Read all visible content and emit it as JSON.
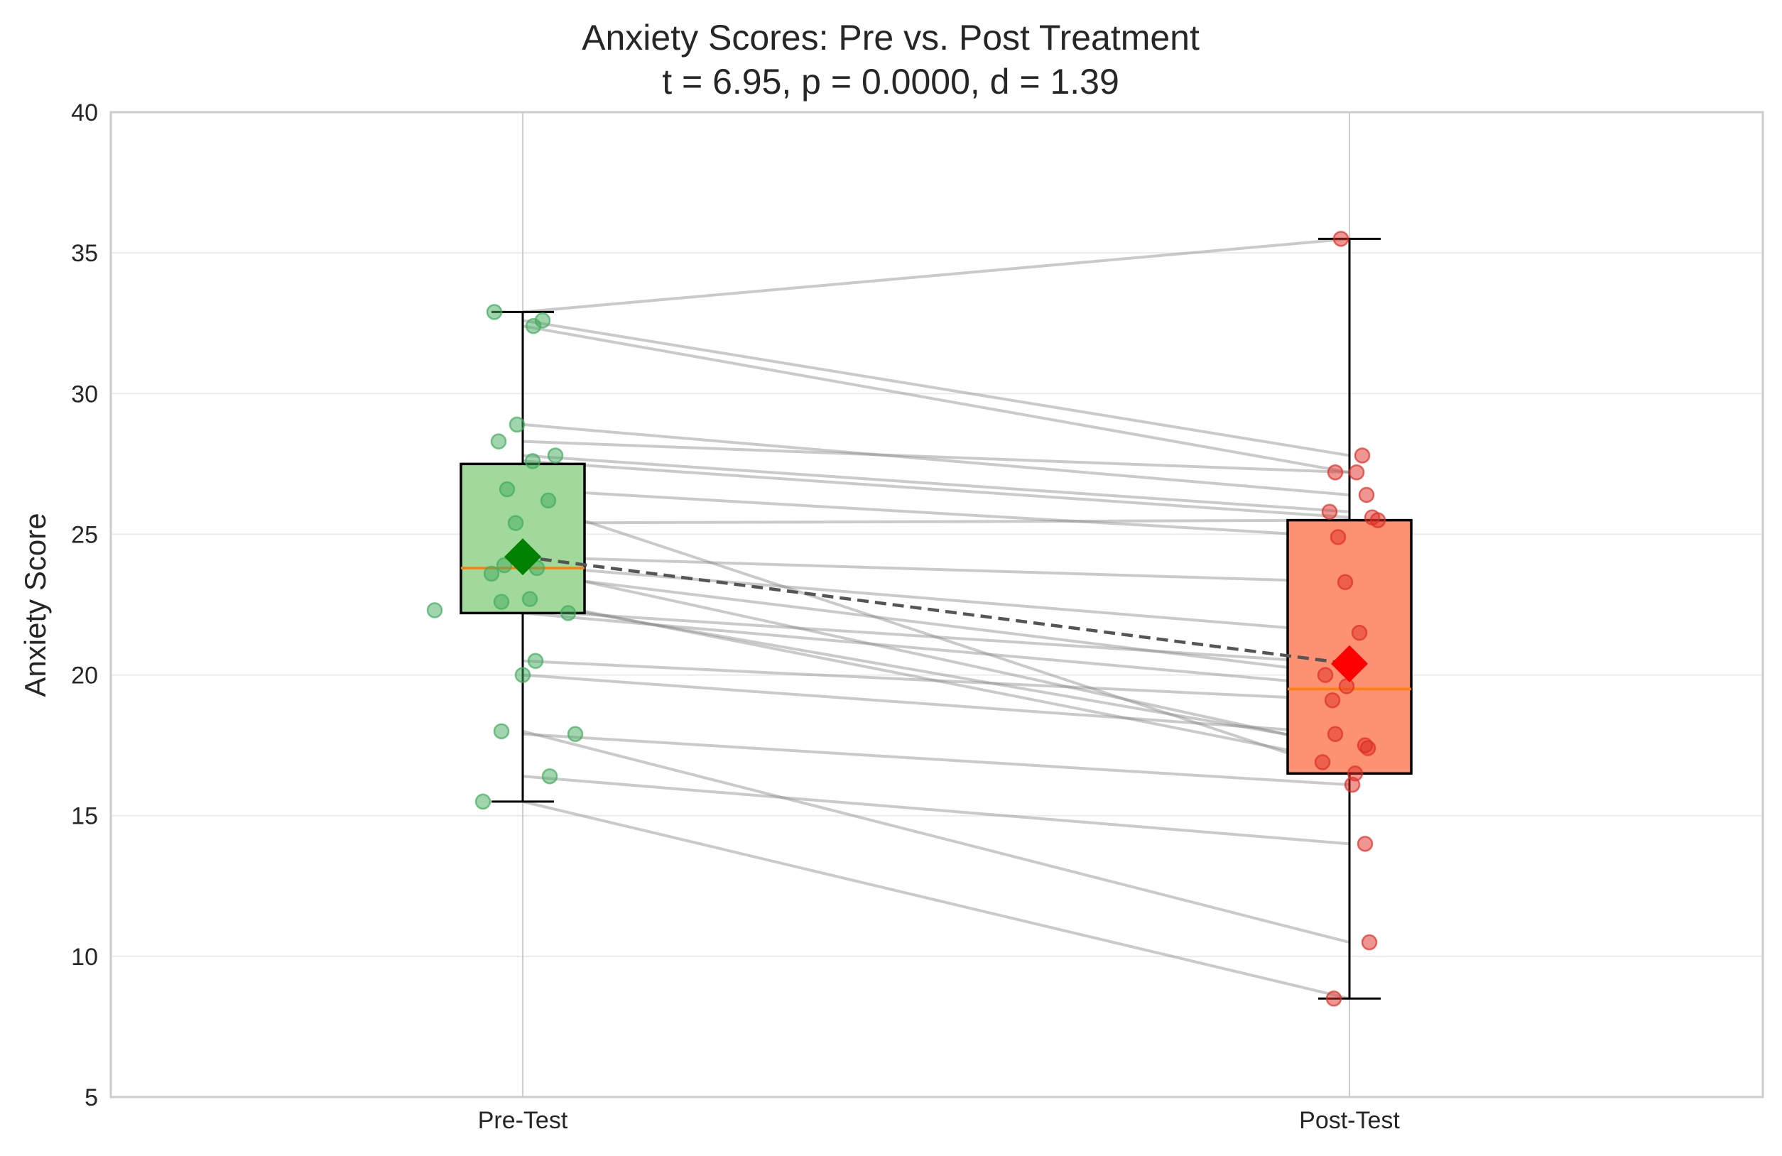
{
  "chart_data": {
    "type": "box",
    "title": "Anxiety Scores: Pre vs. Post Treatment",
    "subtitle": "t = 6.95, p = 0.0000, d = 1.39",
    "xlabel": "",
    "ylabel": "Anxiety Score",
    "ylim": [
      5,
      40
    ],
    "yticks": [
      5,
      10,
      15,
      20,
      25,
      30,
      35,
      40
    ],
    "categories": [
      "Pre-Test",
      "Post-Test"
    ],
    "grid": true,
    "colors": {
      "pre_box": "#a1d99b",
      "post_box": "#fc9272",
      "pre_points": "#41ab5d",
      "post_points": "#de2d26",
      "pre_mean": "#008000",
      "post_mean": "#ff0000",
      "median": "#ff7f0e",
      "pair_lines": "#808080",
      "mean_line": "#555555"
    },
    "boxes": [
      {
        "name": "Pre-Test",
        "whisker_low": 15.5,
        "q1": 22.2,
        "median": 23.8,
        "q3": 27.5,
        "whisker_high": 32.9,
        "mean": 24.2
      },
      {
        "name": "Post-Test",
        "whisker_low": 8.5,
        "q1": 16.5,
        "median": 19.5,
        "q3": 25.5,
        "whisker_high": 35.5,
        "mean": 20.4
      }
    ],
    "paired_scores": [
      {
        "pre": 32.9,
        "post": 35.5
      },
      {
        "pre": 32.6,
        "post": 27.8
      },
      {
        "pre": 32.4,
        "post": 27.2
      },
      {
        "pre": 28.9,
        "post": 26.4
      },
      {
        "pre": 28.3,
        "post": 27.2
      },
      {
        "pre": 27.8,
        "post": 25.8
      },
      {
        "pre": 27.6,
        "post": 25.6
      },
      {
        "pre": 26.6,
        "post": 24.9
      },
      {
        "pre": 26.2,
        "post": 16.5
      },
      {
        "pre": 25.4,
        "post": 25.5
      },
      {
        "pre": 24.2,
        "post": 23.3
      },
      {
        "pre": 23.9,
        "post": 21.5
      },
      {
        "pre": 23.8,
        "post": 17.4
      },
      {
        "pre": 23.6,
        "post": 20.0
      },
      {
        "pre": 22.7,
        "post": 16.9
      },
      {
        "pre": 22.6,
        "post": 17.5
      },
      {
        "pre": 22.3,
        "post": 20.4
      },
      {
        "pre": 22.2,
        "post": 19.6
      },
      {
        "pre": 20.5,
        "post": 19.1
      },
      {
        "pre": 20.0,
        "post": 17.9
      },
      {
        "pre": 18.0,
        "post": 10.5
      },
      {
        "pre": 17.9,
        "post": 16.1
      },
      {
        "pre": 16.4,
        "post": 14.0
      },
      {
        "pre": 15.5,
        "post": 8.5
      }
    ]
  }
}
